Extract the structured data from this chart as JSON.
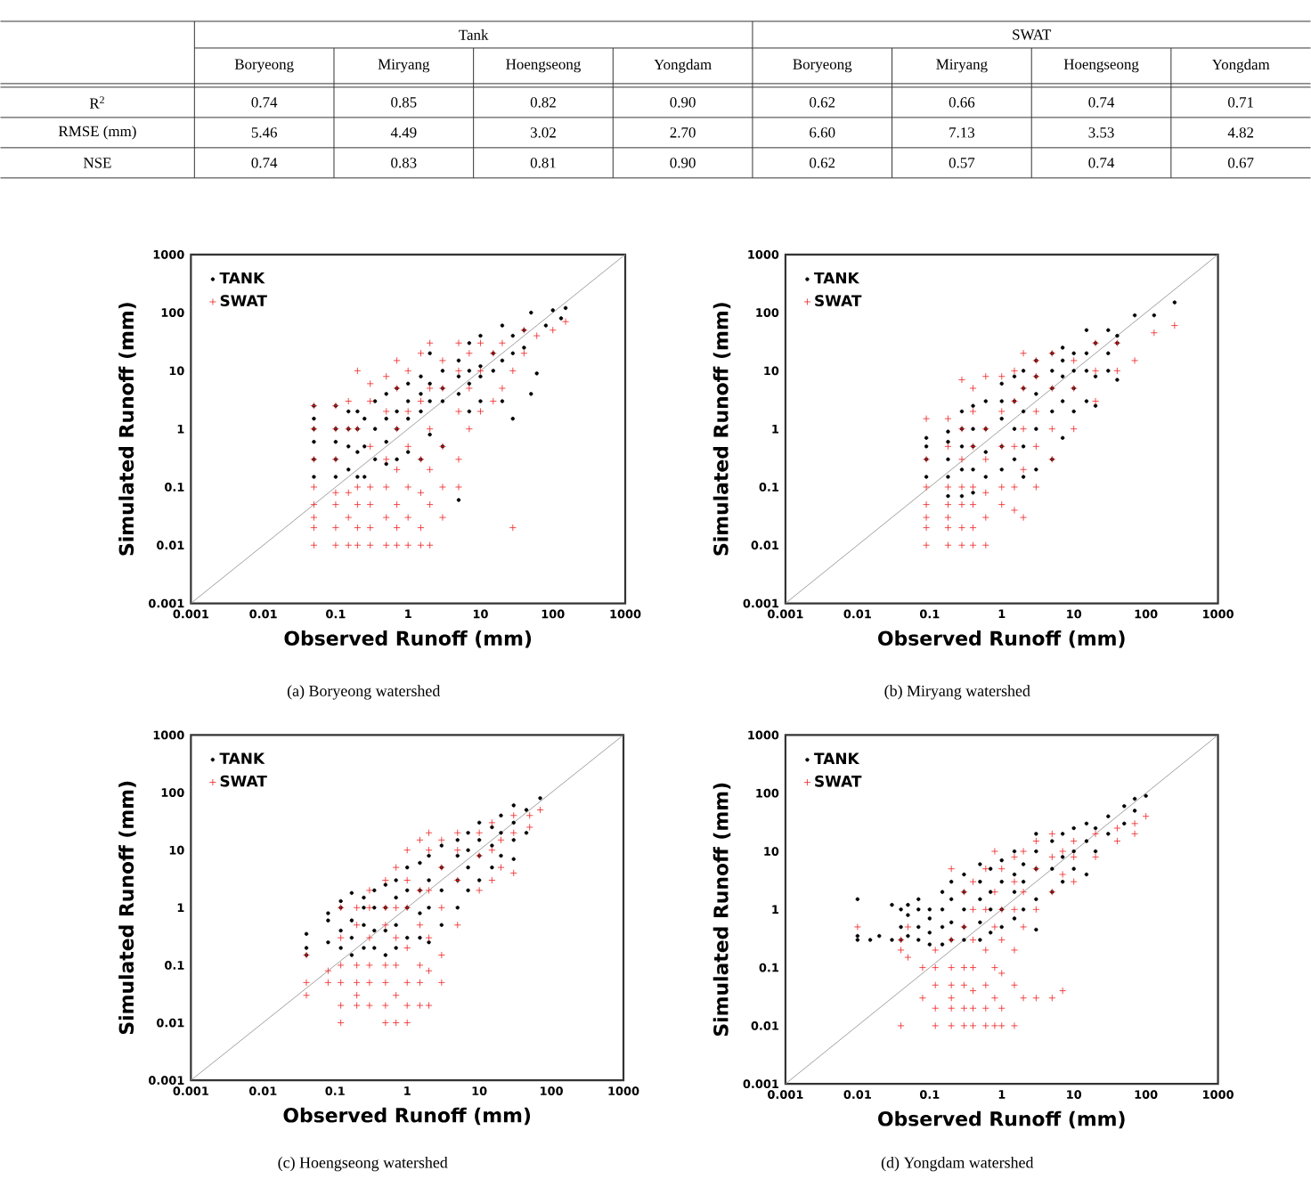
{
  "chart_data": [
    {
      "type": "other",
      "categories": [
        "Boryeong",
        "Miryang",
        "Hoengseong",
        "Yongdam",
        "Boryeong",
        "Miryang",
        "Hoengseong",
        "Yongdam"
      ],
      "y_categories": [
        "R$^{2}$",
        "RMSE (mm)",
        "NSE"
      ],
      "cell_labels": [
        [
          "0.74",
          "0.85",
          "0.82",
          "0.90",
          "0.62",
          "0.66",
          "0.74",
          "0.71"
        ],
        [
          "5.46",
          "4.49",
          "3.02",
          "2.70",
          "6.60",
          "7.13",
          "3.53",
          "4.82"
        ],
        [
          "0.74",
          "0.83",
          "0.81",
          "0.90",
          "0.62",
          "0.57",
          "0.74",
          "0.67"
        ]
      ],
      "annotations": [
        "Tank",
        "SWAT"
      ]
    },
    {
      "type": "scatter",
      "xlabel": "Observed Runoff (mm)",
      "ylabel": "Simulated Runoff (mm)",
      "log": "xy",
      "xlim": [
        0.001,
        1000
      ],
      "ylim": [
        0.001,
        1000
      ],
      "xticks": [
        0.001,
        0.01,
        0.1,
        1,
        10,
        100,
        1000
      ],
      "yticks": [
        0.001,
        0.01,
        0.1,
        1,
        10,
        100,
        1000
      ],
      "legend": "top left",
      "annotations": [
        "(a) Boryeong watershed"
      ],
      "series": [
        {
          "type": "line",
          "color": "#a0a0a0",
          "x": [
            0.001,
            1000
          ],
          "values": [
            0.001,
            1000
          ]
        },
        {
          "name": "TANK",
          "color": "#000000",
          "marker": "circle",
          "x": [
            0.05,
            0.05,
            0.05,
            0.05,
            0.05,
            0.05,
            0.1,
            0.1,
            0.1,
            0.1,
            0.1,
            0.15,
            0.15,
            0.15,
            0.15,
            0.2,
            0.2,
            0.2,
            0.2,
            0.25,
            0.25,
            0.25,
            0.35,
            0.35,
            0.35,
            0.5,
            0.5,
            0.5,
            0.5,
            0.7,
            0.7,
            0.7,
            0.7,
            1,
            1,
            1,
            1,
            1.5,
            1.5,
            1.5,
            1.5,
            2,
            2,
            2,
            2,
            3,
            3,
            3,
            3,
            5,
            5,
            5,
            5,
            7,
            7,
            7,
            7,
            10,
            10,
            10,
            10,
            15,
            15,
            20,
            20,
            20,
            28,
            28,
            28,
            40,
            40,
            50,
            50,
            60,
            80,
            100,
            130,
            150
          ],
          "values": [
            0.15,
            0.3,
            0.6,
            1,
            1.5,
            2.5,
            0.15,
            0.3,
            0.6,
            1,
            2.5,
            0.2,
            0.5,
            1,
            2,
            0.15,
            0.4,
            1,
            2,
            0.15,
            0.5,
            1.5,
            0.3,
            1,
            3,
            0.25,
            0.6,
            1.5,
            4,
            0.3,
            1,
            2,
            5,
            0.4,
            1.5,
            3,
            6,
            0.3,
            2,
            4,
            8,
            0.8,
            3,
            6,
            20,
            0.5,
            3,
            5,
            10,
            0.06,
            4,
            8,
            15,
            2,
            6,
            10,
            30,
            3,
            8,
            12,
            40,
            10,
            20,
            3,
            15,
            60,
            1.5,
            20,
            40,
            25,
            50,
            4,
            100,
            9,
            60,
            110,
            80,
            120
          ]
        },
        {
          "name": "SWAT",
          "color": "#ee2020",
          "marker": "cross",
          "x": [
            0.05,
            0.05,
            0.05,
            0.05,
            0.05,
            0.05,
            0.05,
            0.05,
            0.1,
            0.1,
            0.1,
            0.1,
            0.1,
            0.1,
            0.1,
            0.15,
            0.15,
            0.15,
            0.15,
            0.15,
            0.2,
            0.2,
            0.2,
            0.2,
            0.2,
            0.2,
            0.3,
            0.3,
            0.3,
            0.3,
            0.3,
            0.3,
            0.3,
            0.5,
            0.5,
            0.5,
            0.5,
            0.5,
            0.5,
            0.7,
            0.7,
            0.7,
            0.7,
            0.7,
            0.7,
            0.7,
            1,
            1,
            1,
            1,
            1,
            1,
            1.5,
            1.5,
            1.5,
            1.5,
            1.5,
            1.5,
            2,
            2,
            2,
            2,
            2,
            2,
            3,
            3,
            3,
            3,
            3,
            5,
            5,
            5,
            5,
            5,
            7,
            7,
            7,
            10,
            10,
            10,
            15,
            15,
            20,
            20,
            28,
            28,
            40,
            40,
            60,
            100,
            150
          ],
          "values": [
            0.01,
            0.02,
            0.03,
            0.05,
            0.1,
            0.3,
            1,
            2.5,
            0.01,
            0.02,
            0.05,
            0.08,
            0.3,
            1,
            2.5,
            0.01,
            0.03,
            0.08,
            1,
            3,
            0.01,
            0.02,
            0.05,
            0.1,
            1,
            10,
            0.01,
            0.02,
            0.05,
            0.1,
            0.5,
            3,
            6,
            0.01,
            0.03,
            0.1,
            0.3,
            2,
            8,
            0.01,
            0.02,
            0.05,
            0.2,
            1,
            5,
            15,
            0.01,
            0.03,
            0.1,
            0.5,
            2,
            10,
            0.01,
            0.02,
            0.08,
            0.3,
            3,
            20,
            0.01,
            0.05,
            0.2,
            1,
            5,
            30,
            0.03,
            0.1,
            0.5,
            5,
            15,
            0.1,
            0.3,
            2,
            10,
            30,
            1,
            5,
            20,
            2,
            10,
            30,
            3,
            20,
            5,
            30,
            0.02,
            10,
            20,
            50,
            40,
            50,
            70
          ]
        }
      ]
    },
    {
      "type": "scatter",
      "xlabel": "Observed Runoff (mm)",
      "ylabel": "Simulated Runoff (mm)",
      "log": "xy",
      "xlim": [
        0.001,
        1000
      ],
      "ylim": [
        0.001,
        1000
      ],
      "xticks": [
        0.001,
        0.01,
        0.1,
        1,
        10,
        100,
        1000
      ],
      "yticks": [
        0.001,
        0.01,
        0.1,
        1,
        10,
        100,
        1000
      ],
      "legend": "top left",
      "annotations": [
        "(b) Miryang watershed"
      ],
      "series": [
        {
          "type": "line",
          "color": "#a0a0a0",
          "x": [
            0.001,
            1000
          ],
          "values": [
            0.001,
            1000
          ]
        },
        {
          "name": "TANK",
          "color": "#000000",
          "marker": "circle",
          "x": [
            0.09,
            0.09,
            0.09,
            0.09,
            0.18,
            0.18,
            0.18,
            0.18,
            0.18,
            0.28,
            0.28,
            0.28,
            0.28,
            0.28,
            0.4,
            0.4,
            0.4,
            0.4,
            0.4,
            0.6,
            0.6,
            0.6,
            0.6,
            1,
            1,
            1,
            1,
            1,
            1.5,
            1.5,
            1.5,
            1.5,
            2,
            2,
            2,
            2,
            2,
            3,
            3,
            3,
            3,
            3,
            5,
            5,
            5,
            5,
            5,
            7,
            7,
            7,
            7,
            7,
            10,
            10,
            10,
            10,
            15,
            15,
            15,
            15,
            20,
            20,
            20,
            30,
            30,
            30,
            40,
            40,
            40,
            70,
            130,
            250
          ],
          "values": [
            0.15,
            0.3,
            0.5,
            0.7,
            0.07,
            0.15,
            0.3,
            0.6,
            0.9,
            0.07,
            0.2,
            0.5,
            1,
            2,
            0.08,
            0.2,
            0.5,
            1,
            2.5,
            0.15,
            0.4,
            1,
            3,
            0.2,
            0.5,
            1.5,
            3,
            6,
            0.3,
            1,
            3,
            8,
            0.15,
            0.5,
            2,
            5,
            10,
            0.2,
            1,
            4,
            8,
            15,
            0.3,
            2,
            5,
            10,
            20,
            0.7,
            3,
            8,
            15,
            25,
            2,
            5,
            10,
            20,
            3,
            10,
            20,
            50,
            2.5,
            8,
            30,
            10,
            20,
            50,
            7,
            30,
            40,
            90,
            90,
            150
          ]
        },
        {
          "name": "SWAT",
          "color": "#ee2020",
          "marker": "cross",
          "x": [
            0.09,
            0.09,
            0.09,
            0.09,
            0.09,
            0.09,
            0.09,
            0.18,
            0.18,
            0.18,
            0.18,
            0.18,
            0.18,
            0.18,
            0.28,
            0.28,
            0.28,
            0.28,
            0.28,
            0.28,
            0.28,
            0.4,
            0.4,
            0.4,
            0.4,
            0.4,
            0.4,
            0.4,
            0.6,
            0.6,
            0.6,
            0.6,
            0.6,
            0.6,
            1,
            1,
            1,
            1,
            1,
            1.5,
            1.5,
            1.5,
            1.5,
            1.5,
            2,
            2,
            2,
            2,
            2,
            3,
            3,
            3,
            3,
            3,
            5,
            5,
            5,
            5,
            10,
            10,
            10,
            20,
            20,
            20,
            40,
            40,
            70,
            130,
            250
          ],
          "values": [
            0.01,
            0.02,
            0.03,
            0.05,
            0.1,
            0.3,
            1.5,
            0.01,
            0.02,
            0.03,
            0.05,
            0.1,
            0.5,
            1.5,
            0.01,
            0.02,
            0.05,
            0.1,
            0.3,
            1,
            7,
            0.01,
            0.02,
            0.05,
            0.1,
            0.5,
            2,
            5,
            0.01,
            0.03,
            0.08,
            0.3,
            1,
            8,
            0.05,
            0.1,
            0.5,
            2,
            8,
            0.04,
            0.1,
            0.5,
            3,
            10,
            0.03,
            0.2,
            1,
            5,
            20,
            0.1,
            0.5,
            2,
            8,
            15,
            0.3,
            1,
            5,
            20,
            1,
            5,
            15,
            3,
            10,
            30,
            10,
            30,
            15,
            45,
            60
          ]
        }
      ]
    },
    {
      "type": "scatter",
      "xlabel": "Observed Runoff (mm)",
      "ylabel": "Simulated Runoff (mm)",
      "log": "xy",
      "xlim": [
        0.001,
        1000
      ],
      "ylim": [
        0.001,
        1000
      ],
      "xticks": [
        0.001,
        0.01,
        0.1,
        1,
        10,
        100,
        1000
      ],
      "yticks": [
        0.001,
        0.01,
        0.1,
        1,
        10,
        100,
        1000
      ],
      "legend": "top left",
      "annotations": [
        "(c) Hoengseong watershed"
      ],
      "series": [
        {
          "type": "line",
          "color": "#a0a0a0",
          "x": [
            0.001,
            1000
          ],
          "values": [
            0.001,
            1000
          ]
        },
        {
          "name": "TANK",
          "color": "#000000",
          "marker": "circle",
          "x": [
            0.04,
            0.04,
            0.04,
            0.08,
            0.08,
            0.08,
            0.12,
            0.12,
            0.12,
            0.12,
            0.17,
            0.17,
            0.17,
            0.17,
            0.25,
            0.25,
            0.25,
            0.25,
            0.35,
            0.35,
            0.35,
            0.35,
            0.5,
            0.5,
            0.5,
            0.5,
            0.7,
            0.7,
            0.7,
            0.7,
            1,
            1,
            1,
            1,
            1.5,
            1.5,
            1.5,
            1.5,
            2,
            2,
            2,
            2,
            3,
            3,
            3,
            3,
            5,
            5,
            5,
            5,
            7,
            7,
            7,
            7,
            10,
            10,
            10,
            10,
            15,
            15,
            15,
            20,
            20,
            20,
            30,
            30,
            30,
            30,
            45,
            45,
            70
          ],
          "values": [
            0.15,
            0.2,
            0.35,
            0.25,
            0.6,
            0.8,
            0.2,
            0.4,
            1,
            1.3,
            0.15,
            0.3,
            0.6,
            1.8,
            0.2,
            0.5,
            1,
            1.5,
            0.2,
            0.4,
            1,
            2,
            0.15,
            0.4,
            1,
            2.5,
            0.2,
            0.5,
            1.5,
            3,
            0.3,
            1,
            2,
            5,
            0.3,
            0.8,
            2,
            6,
            0.25,
            1,
            3,
            8,
            0.5,
            2,
            5,
            12,
            1,
            3,
            8,
            15,
            2,
            5,
            10,
            20,
            3,
            8,
            15,
            30,
            5,
            12,
            25,
            8,
            20,
            40,
            7,
            15,
            30,
            60,
            20,
            50,
            80
          ]
        },
        {
          "name": "SWAT",
          "color": "#ee2020",
          "marker": "cross",
          "x": [
            0.04,
            0.04,
            0.04,
            0.08,
            0.08,
            0.12,
            0.12,
            0.12,
            0.12,
            0.12,
            0.12,
            0.2,
            0.2,
            0.2,
            0.2,
            0.2,
            0.2,
            0.3,
            0.3,
            0.3,
            0.3,
            0.3,
            0.3,
            0.5,
            0.5,
            0.5,
            0.5,
            0.5,
            0.5,
            0.5,
            0.7,
            0.7,
            0.7,
            0.7,
            0.7,
            0.7,
            1,
            1,
            1,
            1,
            1,
            1,
            1,
            1.5,
            1.5,
            1.5,
            1.5,
            1.5,
            1.5,
            2,
            2,
            2,
            2,
            2,
            2,
            3,
            3,
            3,
            3,
            3,
            5,
            5,
            5,
            5,
            10,
            10,
            10,
            15,
            15,
            15,
            20,
            20,
            30,
            30,
            30,
            50,
            50,
            70
          ],
          "values": [
            0.03,
            0.05,
            0.15,
            0.05,
            0.08,
            0.01,
            0.02,
            0.05,
            0.1,
            0.3,
            1,
            0.02,
            0.03,
            0.05,
            0.1,
            0.5,
            1,
            0.02,
            0.05,
            0.1,
            0.3,
            1,
            2,
            0.01,
            0.02,
            0.05,
            0.1,
            0.5,
            1,
            3,
            0.01,
            0.03,
            0.1,
            0.3,
            1,
            5,
            0.01,
            0.02,
            0.05,
            0.2,
            1,
            3,
            10,
            0.02,
            0.05,
            0.1,
            0.5,
            2,
            15,
            0.02,
            0.08,
            0.3,
            2,
            10,
            20,
            0.05,
            0.15,
            1,
            5,
            15,
            0.5,
            3,
            10,
            20,
            2,
            8,
            20,
            3,
            10,
            30,
            5,
            15,
            4,
            20,
            40,
            25,
            40,
            50
          ]
        }
      ]
    },
    {
      "type": "scatter",
      "xlabel": "Observed Runoff (mm)",
      "ylabel": "Simulated Runoff (mm)",
      "log": "xy",
      "xlim": [
        0.001,
        1000
      ],
      "ylim": [
        0.001,
        1000
      ],
      "xticks": [
        0.001,
        0.01,
        0.1,
        1,
        10,
        100,
        1000
      ],
      "yticks": [
        0.001,
        0.01,
        0.1,
        1,
        10,
        100,
        1000
      ],
      "legend": "top left",
      "annotations": [
        "(d) Yongdam watershed"
      ],
      "series": [
        {
          "type": "line",
          "color": "#a0a0a0",
          "x": [
            0.001,
            1000
          ],
          "values": [
            0.001,
            1000
          ]
        },
        {
          "name": "TANK",
          "color": "#000000",
          "marker": "circle",
          "x": [
            0.01,
            0.01,
            0.01,
            0.015,
            0.02,
            0.03,
            0.03,
            0.04,
            0.04,
            0.04,
            0.05,
            0.05,
            0.05,
            0.07,
            0.07,
            0.07,
            0.07,
            0.1,
            0.1,
            0.1,
            0.1,
            0.15,
            0.15,
            0.15,
            0.15,
            0.2,
            0.2,
            0.2,
            0.2,
            0.3,
            0.3,
            0.3,
            0.3,
            0.3,
            0.5,
            0.5,
            0.5,
            0.5,
            0.5,
            0.7,
            0.7,
            0.7,
            0.7,
            1,
            1,
            1,
            1,
            1.5,
            1.5,
            1.5,
            1.5,
            2,
            2,
            2,
            3,
            3,
            3,
            3,
            3,
            5,
            5,
            5,
            7,
            7,
            7,
            10,
            10,
            10,
            15,
            15,
            15,
            20,
            20,
            30,
            30,
            50,
            50,
            70,
            70,
            100
          ],
          "values": [
            0.3,
            0.35,
            1.5,
            0.3,
            0.35,
            0.3,
            1.2,
            0.3,
            0.5,
            1,
            0.35,
            0.8,
            1.2,
            0.3,
            0.5,
            1,
            1.5,
            0.25,
            0.4,
            0.7,
            1,
            0.25,
            0.5,
            1,
            2,
            0.3,
            0.6,
            1.5,
            3,
            0.3,
            0.5,
            1,
            2,
            4,
            0.3,
            0.6,
            1.5,
            3,
            6,
            0.4,
            1,
            2,
            5,
            0.5,
            1,
            3,
            7,
            0.7,
            2,
            4,
            10,
            1,
            3,
            6,
            0.45,
            1.5,
            5,
            10,
            20,
            2,
            5,
            15,
            3,
            8,
            20,
            5,
            10,
            25,
            4,
            15,
            30,
            10,
            25,
            20,
            40,
            30,
            60,
            50,
            80,
            90
          ]
        },
        {
          "name": "SWAT",
          "color": "#ee2020",
          "marker": "cross",
          "x": [
            0.01,
            0.04,
            0.04,
            0.04,
            0.05,
            0.05,
            0.08,
            0.08,
            0.12,
            0.12,
            0.12,
            0.12,
            0.12,
            0.2,
            0.2,
            0.2,
            0.2,
            0.2,
            0.2,
            0.2,
            0.3,
            0.3,
            0.3,
            0.3,
            0.3,
            0.3,
            0.4,
            0.4,
            0.4,
            0.4,
            0.4,
            0.4,
            0.4,
            0.6,
            0.6,
            0.6,
            0.6,
            0.6,
            0.6,
            0.8,
            0.8,
            0.8,
            0.8,
            0.8,
            0.8,
            1,
            1,
            1,
            1,
            1,
            1,
            1.5,
            1.5,
            1.5,
            1.5,
            1.5,
            1.5,
            2,
            2,
            2,
            2,
            3,
            3,
            3,
            3,
            5,
            5,
            5,
            5,
            7,
            7,
            7,
            10,
            10,
            10,
            20,
            20,
            40,
            40,
            70,
            70,
            100
          ],
          "values": [
            0.5,
            0.01,
            0.2,
            0.3,
            0.15,
            0.5,
            0.03,
            0.1,
            0.01,
            0.02,
            0.05,
            0.1,
            0.2,
            0.01,
            0.02,
            0.03,
            0.05,
            0.1,
            0.3,
            5,
            0.01,
            0.02,
            0.05,
            0.1,
            0.5,
            2,
            0.01,
            0.02,
            0.04,
            0.1,
            0.3,
            1,
            3,
            0.01,
            0.02,
            0.05,
            0.2,
            1,
            5,
            0.01,
            0.03,
            0.1,
            0.5,
            2,
            10,
            0.01,
            0.02,
            0.08,
            0.3,
            1,
            5,
            0.01,
            0.05,
            0.2,
            1,
            3,
            8,
            0.03,
            0.5,
            2,
            10,
            0.03,
            1,
            5,
            15,
            0.03,
            2,
            8,
            20,
            0.04,
            4,
            10,
            3,
            8,
            15,
            8,
            20,
            15,
            25,
            20,
            30,
            40
          ]
        }
      ]
    }
  ]
}
